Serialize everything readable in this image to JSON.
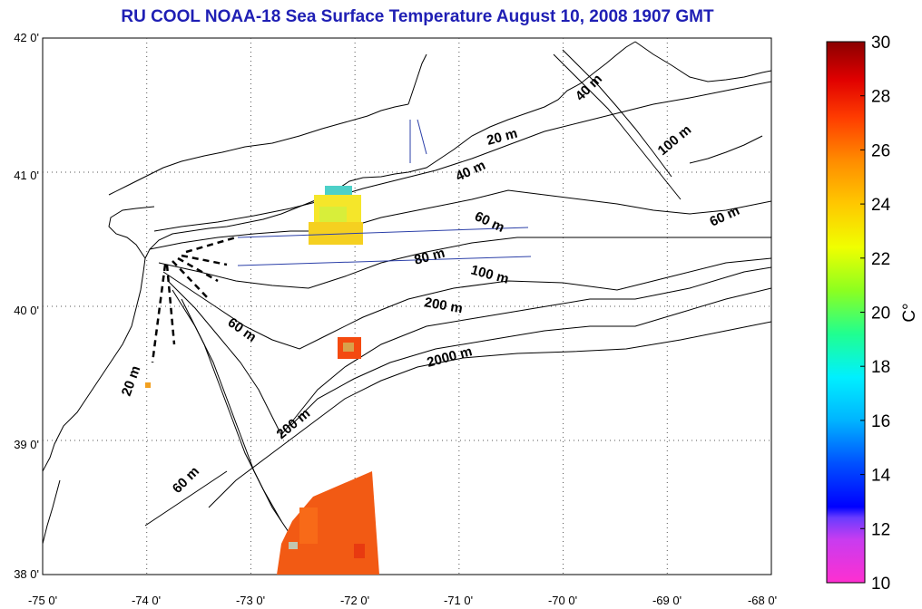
{
  "title": "RU COOL  NOAA-18 Sea Surface Temperature August 10, 2008 1907 GMT",
  "map": {
    "lon_range": [
      -75,
      -68
    ],
    "lat_range": [
      38,
      42
    ],
    "x_ticks": [
      "-75 0'",
      "-74 0'",
      "-73 0'",
      "-72 0'",
      "-71 0'",
      "-70 0'",
      "-69 0'",
      "-68 0'"
    ],
    "y_ticks": [
      "42 0'",
      "41 0'",
      "40 0'",
      "39 0'",
      "38 0'"
    ],
    "grid": "dotted",
    "depth_labels": [
      "20 m",
      "40 m",
      "100 m",
      "40 m",
      "60 m",
      "60 m",
      "80 m",
      "100 m",
      "200 m",
      "2000 m",
      "60 m",
      "20 m",
      "200 m",
      "60 m"
    ]
  },
  "colorbar": {
    "label": "C°",
    "ticks": [
      "30",
      "28",
      "26",
      "24",
      "22",
      "20",
      "18",
      "16",
      "14",
      "12",
      "10"
    ],
    "range": [
      10,
      30
    ]
  },
  "colors": {
    "title": "#1f1fb4",
    "transect": "#2b3fa8"
  }
}
